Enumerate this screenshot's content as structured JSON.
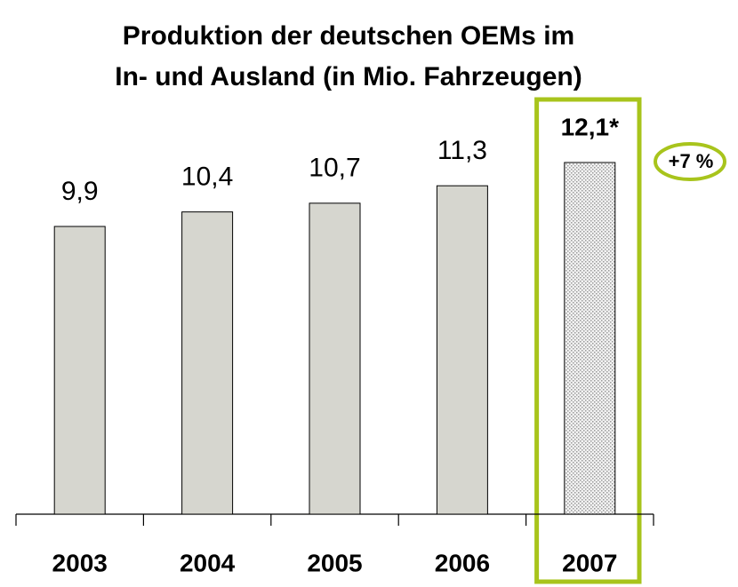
{
  "chart_data": {
    "type": "bar",
    "title": [
      "Produktion der deutschen OEMs im",
      "In- und Ausland (in Mio. Fahrzeugen)"
    ],
    "categories": [
      "2003",
      "2004",
      "2005",
      "2006",
      "2007"
    ],
    "values": [
      9.9,
      10.4,
      10.7,
      11.3,
      12.1
    ],
    "value_labels": [
      "9,9",
      "10,4",
      "10,7",
      "11,3",
      "12,1*"
    ],
    "color": "#d6d6cf",
    "highlight_color": "#a8c41c",
    "annotation": "+7 %"
  }
}
